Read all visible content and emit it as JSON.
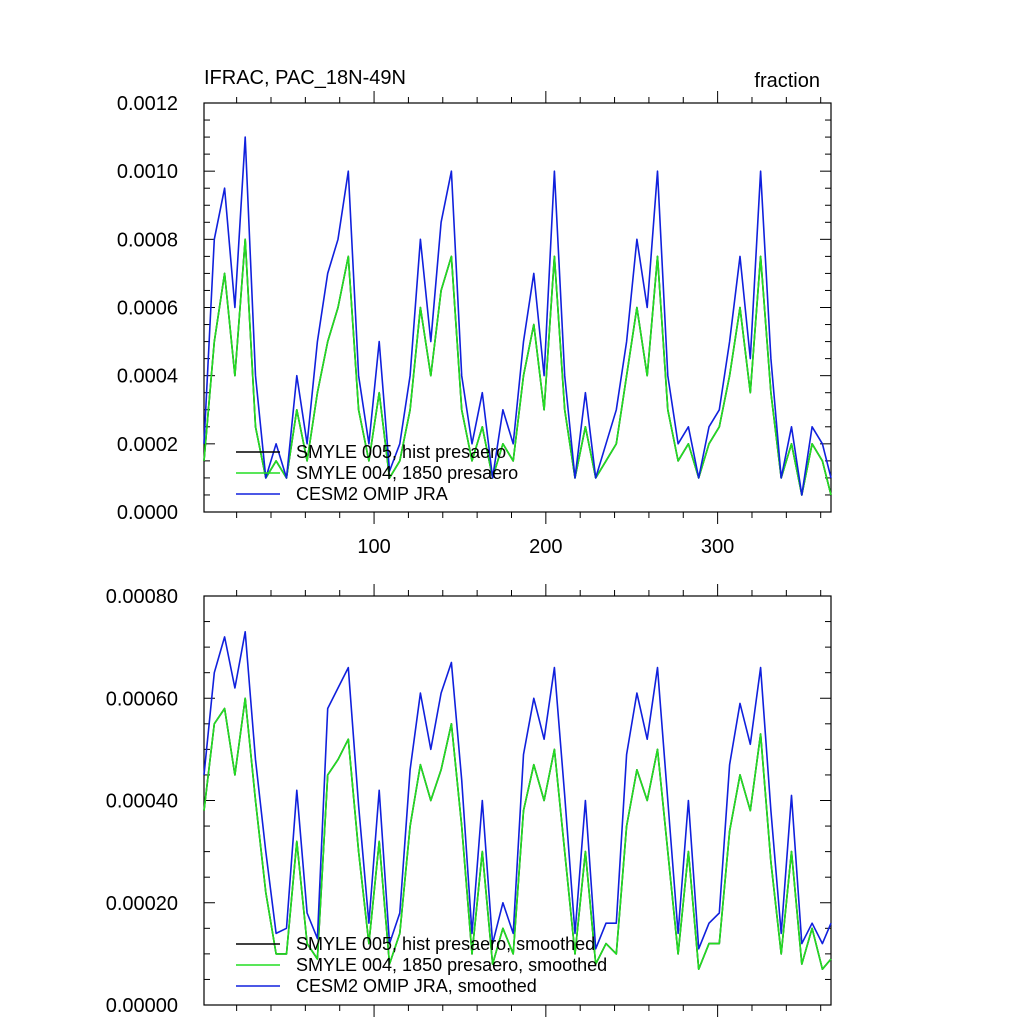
{
  "chart_data": [
    {
      "type": "line",
      "title": "IFRAC, PAC_18N-49N",
      "units_label": "fraction",
      "xlim": [
        1,
        366
      ],
      "ylim": [
        0,
        0.0012
      ],
      "y_ticks": [
        "0.0000",
        "0.0002",
        "0.0004",
        "0.0006",
        "0.0008",
        "0.0010",
        "0.0012"
      ],
      "x_ticks": [
        "100",
        "200",
        "300"
      ],
      "grid": false,
      "legend_placement": "bottom-left",
      "x": [
        1,
        7,
        13,
        19,
        25,
        31,
        37,
        43,
        49,
        55,
        61,
        67,
        73,
        79,
        85,
        91,
        97,
        103,
        109,
        115,
        121,
        127,
        133,
        139,
        145,
        151,
        157,
        163,
        169,
        175,
        181,
        187,
        193,
        199,
        205,
        211,
        217,
        223,
        229,
        235,
        241,
        247,
        253,
        259,
        265,
        271,
        277,
        283,
        289,
        295,
        301,
        307,
        313,
        319,
        325,
        331,
        337,
        343,
        349,
        355,
        361,
        366
      ],
      "series": [
        {
          "name": "SMYLE 005, hist presaero",
          "color": "#000000",
          "values": [
            0.00015,
            0.0005,
            0.0007,
            0.0004,
            0.0008,
            0.00025,
            0.0001,
            0.00015,
            0.0001,
            0.0003,
            0.00015,
            0.00035,
            0.0005,
            0.0006,
            0.00075,
            0.0003,
            0.00015,
            0.00035,
            0.0001,
            0.00015,
            0.0003,
            0.0006,
            0.0004,
            0.00065,
            0.00075,
            0.0003,
            0.00015,
            0.00025,
            0.0001,
            0.0002,
            0.00015,
            0.0004,
            0.00055,
            0.0003,
            0.00075,
            0.0003,
            0.0001,
            0.00025,
            0.0001,
            0.00015,
            0.0002,
            0.0004,
            0.0006,
            0.0004,
            0.00075,
            0.0003,
            0.00015,
            0.0002,
            0.0001,
            0.0002,
            0.00025,
            0.0004,
            0.0006,
            0.00035,
            0.00075,
            0.00035,
            0.0001,
            0.0002,
            5e-05,
            0.0002,
            0.00015,
            5e-05
          ]
        },
        {
          "name": "SMYLE 004, 1850 presaero",
          "color": "#22dd22",
          "values": [
            0.00015,
            0.0005,
            0.0007,
            0.0004,
            0.0008,
            0.00025,
            0.0001,
            0.00015,
            0.0001,
            0.0003,
            0.00015,
            0.00035,
            0.0005,
            0.0006,
            0.00075,
            0.0003,
            0.00015,
            0.00035,
            0.0001,
            0.00015,
            0.0003,
            0.0006,
            0.0004,
            0.00065,
            0.00075,
            0.0003,
            0.00015,
            0.00025,
            0.0001,
            0.0002,
            0.00015,
            0.0004,
            0.00055,
            0.0003,
            0.00075,
            0.0003,
            0.0001,
            0.00025,
            0.0001,
            0.00015,
            0.0002,
            0.0004,
            0.0006,
            0.0004,
            0.00075,
            0.0003,
            0.00015,
            0.0002,
            0.0001,
            0.0002,
            0.00025,
            0.0004,
            0.0006,
            0.00035,
            0.00075,
            0.00035,
            0.0001,
            0.0002,
            5e-05,
            0.0002,
            0.00015,
            5e-05
          ]
        },
        {
          "name": "CESM2 OMIP JRA",
          "color": "#1020dd",
          "values": [
            0.0002,
            0.0008,
            0.00095,
            0.0006,
            0.0011,
            0.0004,
            0.0001,
            0.0002,
            0.0001,
            0.0004,
            0.0002,
            0.0005,
            0.0007,
            0.0008,
            0.001,
            0.0004,
            0.0002,
            0.0005,
            0.00012,
            0.0002,
            0.0004,
            0.0008,
            0.0005,
            0.00085,
            0.001,
            0.0004,
            0.0002,
            0.00035,
            0.0001,
            0.0003,
            0.0002,
            0.0005,
            0.0007,
            0.0004,
            0.001,
            0.0004,
            0.0001,
            0.00035,
            0.0001,
            0.0002,
            0.0003,
            0.0005,
            0.0008,
            0.0006,
            0.001,
            0.0004,
            0.0002,
            0.00025,
            0.0001,
            0.00025,
            0.0003,
            0.0005,
            0.00075,
            0.00045,
            0.001,
            0.00045,
            0.0001,
            0.00025,
            5e-05,
            0.00025,
            0.0002,
            0.0001
          ]
        }
      ]
    },
    {
      "type": "line",
      "title": "",
      "xlim": [
        1,
        366
      ],
      "ylim": [
        0,
        0.0008
      ],
      "y_ticks": [
        "0.00000",
        "0.00020",
        "0.00040",
        "0.00060",
        "0.00080"
      ],
      "grid": false,
      "legend_placement": "bottom-left",
      "x": [
        1,
        7,
        13,
        19,
        25,
        31,
        37,
        43,
        49,
        55,
        61,
        67,
        73,
        79,
        85,
        91,
        97,
        103,
        109,
        115,
        121,
        127,
        133,
        139,
        145,
        151,
        157,
        163,
        169,
        175,
        181,
        187,
        193,
        199,
        205,
        211,
        217,
        223,
        229,
        235,
        241,
        247,
        253,
        259,
        265,
        271,
        277,
        283,
        289,
        295,
        301,
        307,
        313,
        319,
        325,
        331,
        337,
        343,
        349,
        355,
        361,
        366
      ],
      "series": [
        {
          "name": "SMYLE 005, hist presaero, smoothed",
          "color": "#000000",
          "values": [
            0.00038,
            0.00055,
            0.00058,
            0.00045,
            0.0006,
            0.0004,
            0.00022,
            0.0001,
            0.0001,
            0.00032,
            0.00012,
            9e-05,
            0.00045,
            0.00048,
            0.00052,
            0.0003,
            0.00012,
            0.00032,
            8e-05,
            0.00014,
            0.00035,
            0.00047,
            0.0004,
            0.00046,
            0.00055,
            0.00035,
            0.0001,
            0.0003,
            8e-05,
            0.00015,
            0.0001,
            0.00038,
            0.00047,
            0.0004,
            0.0005,
            0.0003,
            0.0001,
            0.0003,
            8e-05,
            0.00012,
            0.0001,
            0.00035,
            0.00046,
            0.0004,
            0.0005,
            0.0003,
            0.0001,
            0.0003,
            7e-05,
            0.00012,
            0.00012,
            0.00034,
            0.00045,
            0.00038,
            0.00053,
            0.00028,
            0.0001,
            0.0003,
            8e-05,
            0.00015,
            7e-05,
            9e-05
          ]
        },
        {
          "name": "SMYLE 004, 1850 presaero, smoothed",
          "color": "#22dd22",
          "values": [
            0.00038,
            0.00055,
            0.00058,
            0.00045,
            0.0006,
            0.0004,
            0.00022,
            0.0001,
            0.0001,
            0.00032,
            0.00012,
            9e-05,
            0.00045,
            0.00048,
            0.00052,
            0.0003,
            0.00012,
            0.00032,
            8e-05,
            0.00014,
            0.00035,
            0.00047,
            0.0004,
            0.00046,
            0.00055,
            0.00035,
            0.0001,
            0.0003,
            8e-05,
            0.00015,
            0.0001,
            0.00038,
            0.00047,
            0.0004,
            0.0005,
            0.0003,
            0.0001,
            0.0003,
            8e-05,
            0.00012,
            0.0001,
            0.00035,
            0.00046,
            0.0004,
            0.0005,
            0.0003,
            0.0001,
            0.0003,
            7e-05,
            0.00012,
            0.00012,
            0.00034,
            0.00045,
            0.00038,
            0.00053,
            0.00028,
            0.0001,
            0.0003,
            8e-05,
            0.00015,
            7e-05,
            9e-05
          ]
        },
        {
          "name": "CESM2 OMIP JRA, smoothed",
          "color": "#1020dd",
          "values": [
            0.00045,
            0.00065,
            0.00072,
            0.00062,
            0.00073,
            0.00048,
            0.0003,
            0.00014,
            0.00015,
            0.00042,
            0.00018,
            0.00013,
            0.00058,
            0.00062,
            0.00066,
            0.00039,
            0.00016,
            0.00042,
            0.00012,
            0.00018,
            0.00046,
            0.00061,
            0.0005,
            0.00061,
            0.00067,
            0.00044,
            0.00014,
            0.0004,
            0.00012,
            0.0002,
            0.00014,
            0.00049,
            0.0006,
            0.00052,
            0.00066,
            0.00041,
            0.00014,
            0.0004,
            0.00011,
            0.00016,
            0.00016,
            0.00049,
            0.00061,
            0.00052,
            0.00066,
            0.0004,
            0.00014,
            0.0004,
            0.00011,
            0.00016,
            0.00018,
            0.00047,
            0.00059,
            0.00051,
            0.00066,
            0.00038,
            0.00014,
            0.00041,
            0.00012,
            0.00016,
            0.00012,
            0.00016
          ]
        }
      ]
    }
  ]
}
